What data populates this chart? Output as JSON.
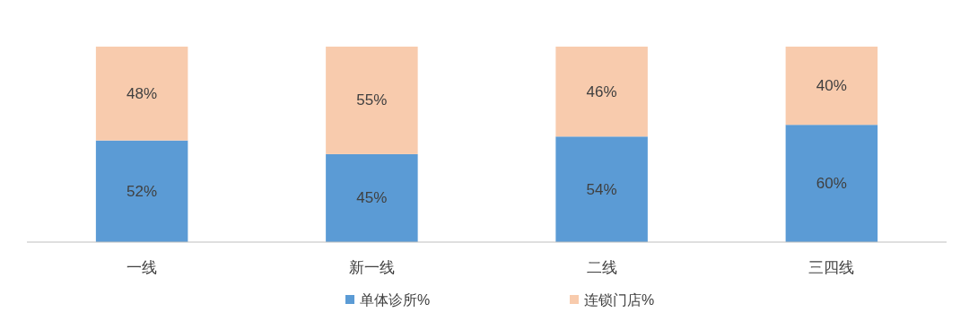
{
  "chart_data": {
    "type": "bar",
    "stacked": true,
    "categories": [
      "一线",
      "新一线",
      "二线",
      "三四线"
    ],
    "series": [
      {
        "name": "单体诊所%",
        "color": "#5b9bd5",
        "values": [
          52,
          45,
          54,
          60
        ],
        "value_labels": [
          "52%",
          "45%",
          "54%",
          "60%"
        ]
      },
      {
        "name": "连锁门店%",
        "color": "#f8cbad",
        "values": [
          48,
          55,
          46,
          40
        ],
        "value_labels": [
          "48%",
          "55%",
          "46%",
          "40%"
        ]
      }
    ],
    "legend": "bottom"
  }
}
